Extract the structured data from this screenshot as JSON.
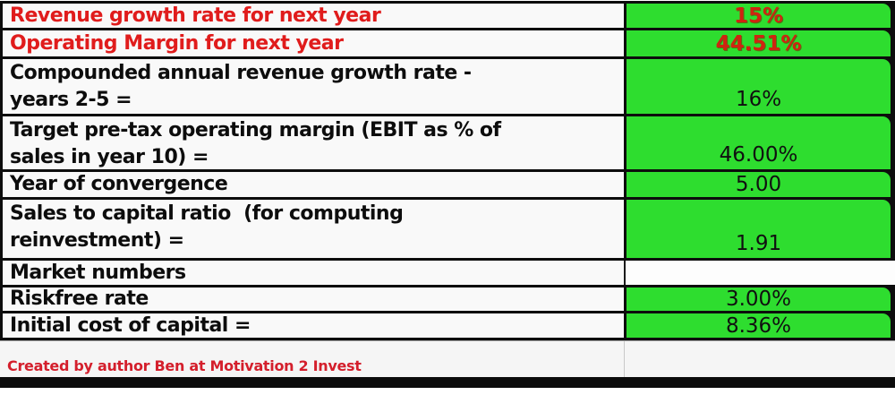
{
  "table": {
    "rows": [
      {
        "label": "Revenue growth rate for next year",
        "value": "15%"
      },
      {
        "label": "Operating Margin for next year",
        "value": "44.51%"
      },
      {
        "label": "Compounded annual revenue growth rate -\nyears 2-5 =",
        "value": "16%"
      },
      {
        "label": "Target pre-tax operating margin (EBIT as % of\nsales in year 10) =",
        "value": "46.00%"
      },
      {
        "label": "Year of convergence",
        "value": "5.00"
      },
      {
        "label": "Sales to capital ratio  (for computing\nreinvestment) =",
        "value": "1.91"
      },
      {
        "label": "Market numbers",
        "value": ""
      },
      {
        "label": "Riskfree rate",
        "value": "3.00%"
      },
      {
        "label": "Initial cost of capital =",
        "value": "8.36%"
      }
    ]
  },
  "footer": {
    "credit": "Created by author Ben at Motivation 2 Invest"
  },
  "colors": {
    "cell_green": "#2edd2f",
    "label_red": "#e01c1c",
    "value_red": "#d02410",
    "footer_red": "#d41f2c",
    "border_black": "#0d0d0d"
  }
}
